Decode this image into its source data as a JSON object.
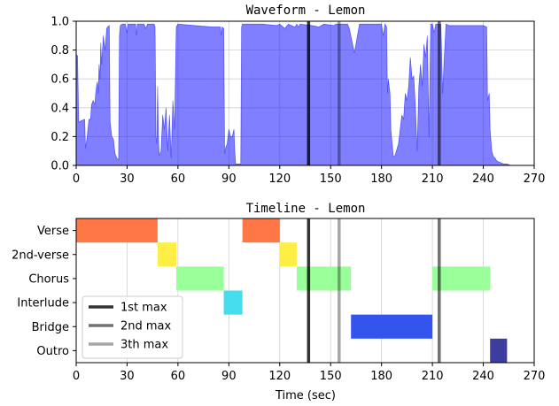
{
  "chart_data": [
    {
      "type": "area",
      "title": "Waveform - Lemon",
      "xlabel": "",
      "ylabel": "",
      "xlim": [
        0,
        270
      ],
      "ylim": [
        0,
        1.0
      ],
      "xticks": [
        0,
        30,
        60,
        90,
        120,
        150,
        180,
        210,
        240,
        270
      ],
      "yticks": [
        0.0,
        0.2,
        0.4,
        0.6,
        0.8,
        1.0
      ],
      "grid": true,
      "color": "#0000ff",
      "envelope": [
        [
          0,
          0.77
        ],
        [
          0.8,
          0.76
        ],
        [
          1.5,
          0.3
        ],
        [
          3,
          0.31
        ],
        [
          5,
          0.32
        ],
        [
          5.5,
          0.12
        ],
        [
          6.5,
          0.2
        ],
        [
          7.5,
          0.32
        ],
        [
          8.5,
          0.32
        ],
        [
          9,
          0.42
        ],
        [
          10,
          0.45
        ],
        [
          11,
          0.42
        ],
        [
          11.5,
          0.5
        ],
        [
          12,
          0.55
        ],
        [
          12.5,
          0.58
        ],
        [
          13,
          0.5
        ],
        [
          13.5,
          0.7
        ],
        [
          14,
          0.6
        ],
        [
          14.5,
          0.85
        ],
        [
          15,
          0.7
        ],
        [
          16,
          0.9
        ],
        [
          17,
          0.8
        ],
        [
          18,
          0.95
        ],
        [
          18.5,
          0.96
        ],
        [
          19.5,
          0.97
        ],
        [
          20,
          0.3
        ],
        [
          21,
          0.2
        ],
        [
          22,
          0.18
        ],
        [
          22.5,
          0.12
        ],
        [
          23,
          0.08
        ],
        [
          24,
          0.05
        ],
        [
          25,
          0.04
        ],
        [
          25.5,
          0.9
        ],
        [
          26,
          0.97
        ],
        [
          27,
          0.98
        ],
        [
          29,
          0.98
        ],
        [
          30,
          0.92
        ],
        [
          30.5,
          0.98
        ],
        [
          35,
          0.98
        ],
        [
          35.5,
          0.9
        ],
        [
          36,
          0.98
        ],
        [
          40,
          0.98
        ],
        [
          41,
          0.95
        ],
        [
          42,
          0.98
        ],
        [
          46,
          0.98
        ],
        [
          46.5,
          0.96
        ],
        [
          47,
          0.2
        ],
        [
          47.5,
          0.15
        ],
        [
          48,
          0.55
        ],
        [
          48.5,
          0.2
        ],
        [
          49,
          0.07
        ],
        [
          50,
          0.1
        ],
        [
          51,
          0.35
        ],
        [
          52,
          0.25
        ],
        [
          53,
          0.4
        ],
        [
          54,
          0.1
        ],
        [
          55,
          0.35
        ],
        [
          56,
          0.05
        ],
        [
          57,
          0.45
        ],
        [
          58,
          0.25
        ],
        [
          59,
          0.96
        ],
        [
          60,
          0.98
        ],
        [
          70,
          0.97
        ],
        [
          80,
          0.96
        ],
        [
          85,
          0.96
        ],
        [
          85.5,
          0.9
        ],
        [
          86,
          0.96
        ],
        [
          87,
          0.95
        ],
        [
          87.5,
          0.08
        ],
        [
          88,
          0.12
        ],
        [
          89,
          0.15
        ],
        [
          90,
          0.25
        ],
        [
          91,
          0.2
        ],
        [
          92,
          0.2
        ],
        [
          93,
          0.25
        ],
        [
          93.5,
          0.1
        ],
        [
          94,
          0.01
        ],
        [
          97,
          0.01
        ],
        [
          97.5,
          0.96
        ],
        [
          98,
          0.98
        ],
        [
          110,
          0.98
        ],
        [
          118,
          0.97
        ],
        [
          120,
          0.98
        ],
        [
          123,
          0.95
        ],
        [
          125,
          0.98
        ],
        [
          129,
          0.96
        ],
        [
          130,
          0.98
        ],
        [
          131,
          0.96
        ],
        [
          132,
          0.98
        ],
        [
          139,
          0.97
        ],
        [
          143,
          0.96
        ],
        [
          146,
          0.98
        ],
        [
          152,
          0.97
        ],
        [
          153,
          0.98
        ],
        [
          155,
          0.98
        ],
        [
          158,
          0.98
        ],
        [
          160,
          0.98
        ],
        [
          161,
          0.95
        ],
        [
          164,
          0.78
        ],
        [
          167,
          0.98
        ],
        [
          180,
          0.98
        ],
        [
          181,
          0.9
        ],
        [
          182,
          0.98
        ],
        [
          183,
          0.96
        ],
        [
          183.5,
          0.5
        ],
        [
          184,
          0.6
        ],
        [
          185,
          0.5
        ],
        [
          185.5,
          0.25
        ],
        [
          187,
          0.06
        ],
        [
          188,
          0.07
        ],
        [
          190,
          0.15
        ],
        [
          192,
          0.35
        ],
        [
          193,
          0.32
        ],
        [
          194,
          0.5
        ],
        [
          195,
          0.45
        ],
        [
          196,
          0.55
        ],
        [
          197,
          0.75
        ],
        [
          198,
          0.6
        ],
        [
          199,
          0.62
        ],
        [
          200,
          0.4
        ],
        [
          201,
          0.1
        ],
        [
          202,
          0.55
        ],
        [
          203,
          0.7
        ],
        [
          204,
          0.55
        ],
        [
          205,
          0.84
        ],
        [
          206,
          0.75
        ],
        [
          207,
          0.9
        ],
        [
          208,
          0.2
        ],
        [
          209,
          0.98
        ],
        [
          210,
          0.98
        ],
        [
          211,
          0.92
        ],
        [
          212,
          0.98
        ],
        [
          215,
          0.98
        ],
        [
          216,
          0.5
        ],
        [
          217,
          0.75
        ],
        [
          218,
          0.98
        ],
        [
          220,
          0.97
        ],
        [
          230,
          0.97
        ],
        [
          240,
          0.97
        ],
        [
          242,
          0.96
        ],
        [
          242.5,
          0.45
        ],
        [
          243.5,
          0.5
        ],
        [
          244,
          0.25
        ],
        [
          245,
          0.1
        ],
        [
          246,
          0.06
        ],
        [
          247,
          0.05
        ],
        [
          248,
          0.03
        ],
        [
          250,
          0.02
        ],
        [
          252,
          0.01
        ],
        [
          254,
          0.01
        ],
        [
          256,
          0.0
        ]
      ],
      "markers": [
        {
          "name": "1st max",
          "x": 137,
          "color": "#000000",
          "opacity": 0.8
        },
        {
          "name": "2nd max",
          "x": 214,
          "color": "#000000",
          "opacity": 0.55
        },
        {
          "name": "3th max",
          "x": 155,
          "color": "#000000",
          "opacity": 0.35
        }
      ]
    },
    {
      "type": "timeline",
      "title": "Timeline - Lemon",
      "xlabel": "Time (sec)",
      "ylabel": "",
      "xlim": [
        0,
        270
      ],
      "xticks": [
        0,
        30,
        60,
        90,
        120,
        150,
        180,
        210,
        240,
        270
      ],
      "categories": [
        "Verse",
        "2nd-verse",
        "Chorus",
        "Interlude",
        "Bridge",
        "Outro"
      ],
      "grid": true,
      "segments": [
        {
          "label": "Verse",
          "start": 0,
          "end": 48,
          "color": "#ff7744"
        },
        {
          "label": "Verse",
          "start": 98,
          "end": 120,
          "color": "#ff7744"
        },
        {
          "label": "2nd-verse",
          "start": 48,
          "end": 59,
          "color": "#ffee44"
        },
        {
          "label": "2nd-verse",
          "start": 120,
          "end": 130,
          "color": "#ffee44"
        },
        {
          "label": "Chorus",
          "start": 59,
          "end": 87,
          "color": "#99ff99"
        },
        {
          "label": "Chorus",
          "start": 130,
          "end": 162,
          "color": "#99ff99"
        },
        {
          "label": "Chorus",
          "start": 210,
          "end": 244,
          "color": "#99ff99"
        },
        {
          "label": "Interlude",
          "start": 87,
          "end": 98,
          "color": "#44ddee"
        },
        {
          "label": "Bridge",
          "start": 162,
          "end": 210,
          "color": "#3355ee"
        },
        {
          "label": "Outro",
          "start": 244,
          "end": 254,
          "color": "#3d3da0"
        }
      ],
      "markers": [
        {
          "name": "1st max",
          "x": 137,
          "color": "#000000",
          "opacity": 0.8
        },
        {
          "name": "2nd max",
          "x": 214,
          "color": "#000000",
          "opacity": 0.55
        },
        {
          "name": "3th max",
          "x": 155,
          "color": "#000000",
          "opacity": 0.35
        }
      ],
      "legend": {
        "placement": "lower-left",
        "entries": [
          "1st max",
          "2nd max",
          "3th max"
        ]
      }
    }
  ]
}
